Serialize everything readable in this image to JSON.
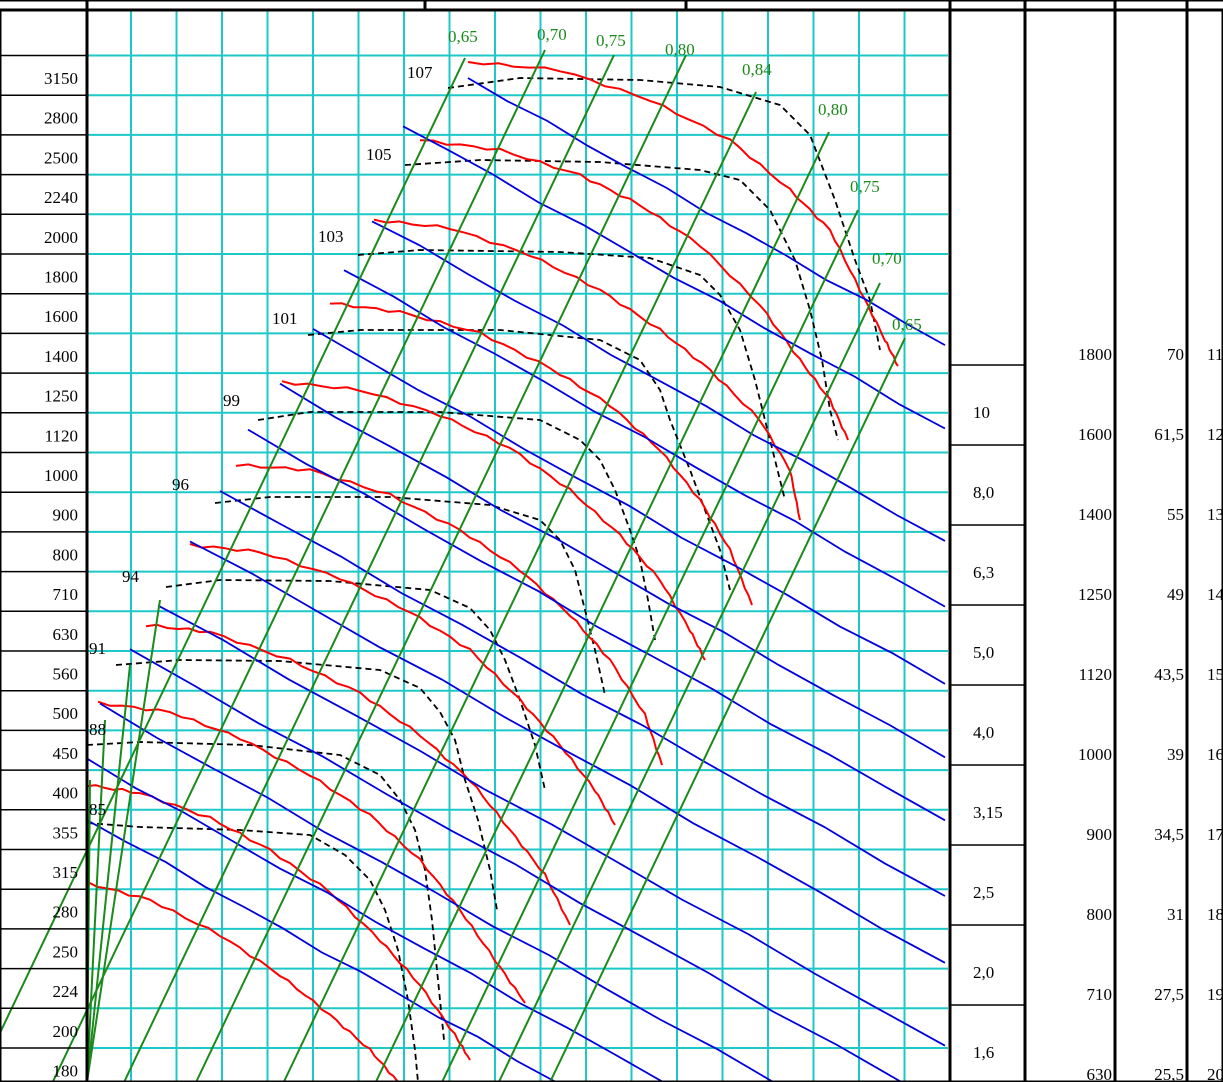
{
  "chart_data": {
    "type": "line",
    "colors": {
      "grid": "#1ec8c8",
      "frame": "#000000",
      "efficiency": "#1a8a1a",
      "pressure": "#ff0000",
      "flow": "#0000dd",
      "sound": "#000000",
      "efficiency_label": "#1a8a1a"
    },
    "y_axis_ticks": [
      "3150",
      "2800",
      "2500",
      "2240",
      "2000",
      "1800",
      "1600",
      "1400",
      "1250",
      "1120",
      "1000",
      "900",
      "800",
      "710",
      "630",
      "560",
      "500",
      "450",
      "400",
      "355",
      "315",
      "280",
      "250",
      "224",
      "200",
      "180"
    ],
    "efficiency_labels": [
      "0,65",
      "0,70",
      "0,75",
      "0,80",
      "0,84",
      "0,80",
      "0,75",
      "0,70",
      "0,65"
    ],
    "sound_level_labels": [
      "107",
      "105",
      "103",
      "101",
      "99",
      "96",
      "94",
      "91",
      "88",
      "85"
    ],
    "table": {
      "col1": [
        "10",
        "8,0",
        "6,3",
        "5,0",
        "4,0",
        "3,15",
        "2,5",
        "2,0",
        "1,6"
      ],
      "col2": [
        "1800",
        "1600",
        "1400",
        "1250",
        "1120",
        "1000",
        "900",
        "800",
        "710",
        "630"
      ],
      "col3": [
        "70",
        "61,5",
        "55",
        "49",
        "43,5",
        "39",
        "34,5",
        "31",
        "27,5",
        "25,5"
      ],
      "col4": [
        "11",
        "12",
        "13",
        "14",
        "15",
        "16",
        "17",
        "18",
        "19",
        "20"
      ]
    }
  }
}
